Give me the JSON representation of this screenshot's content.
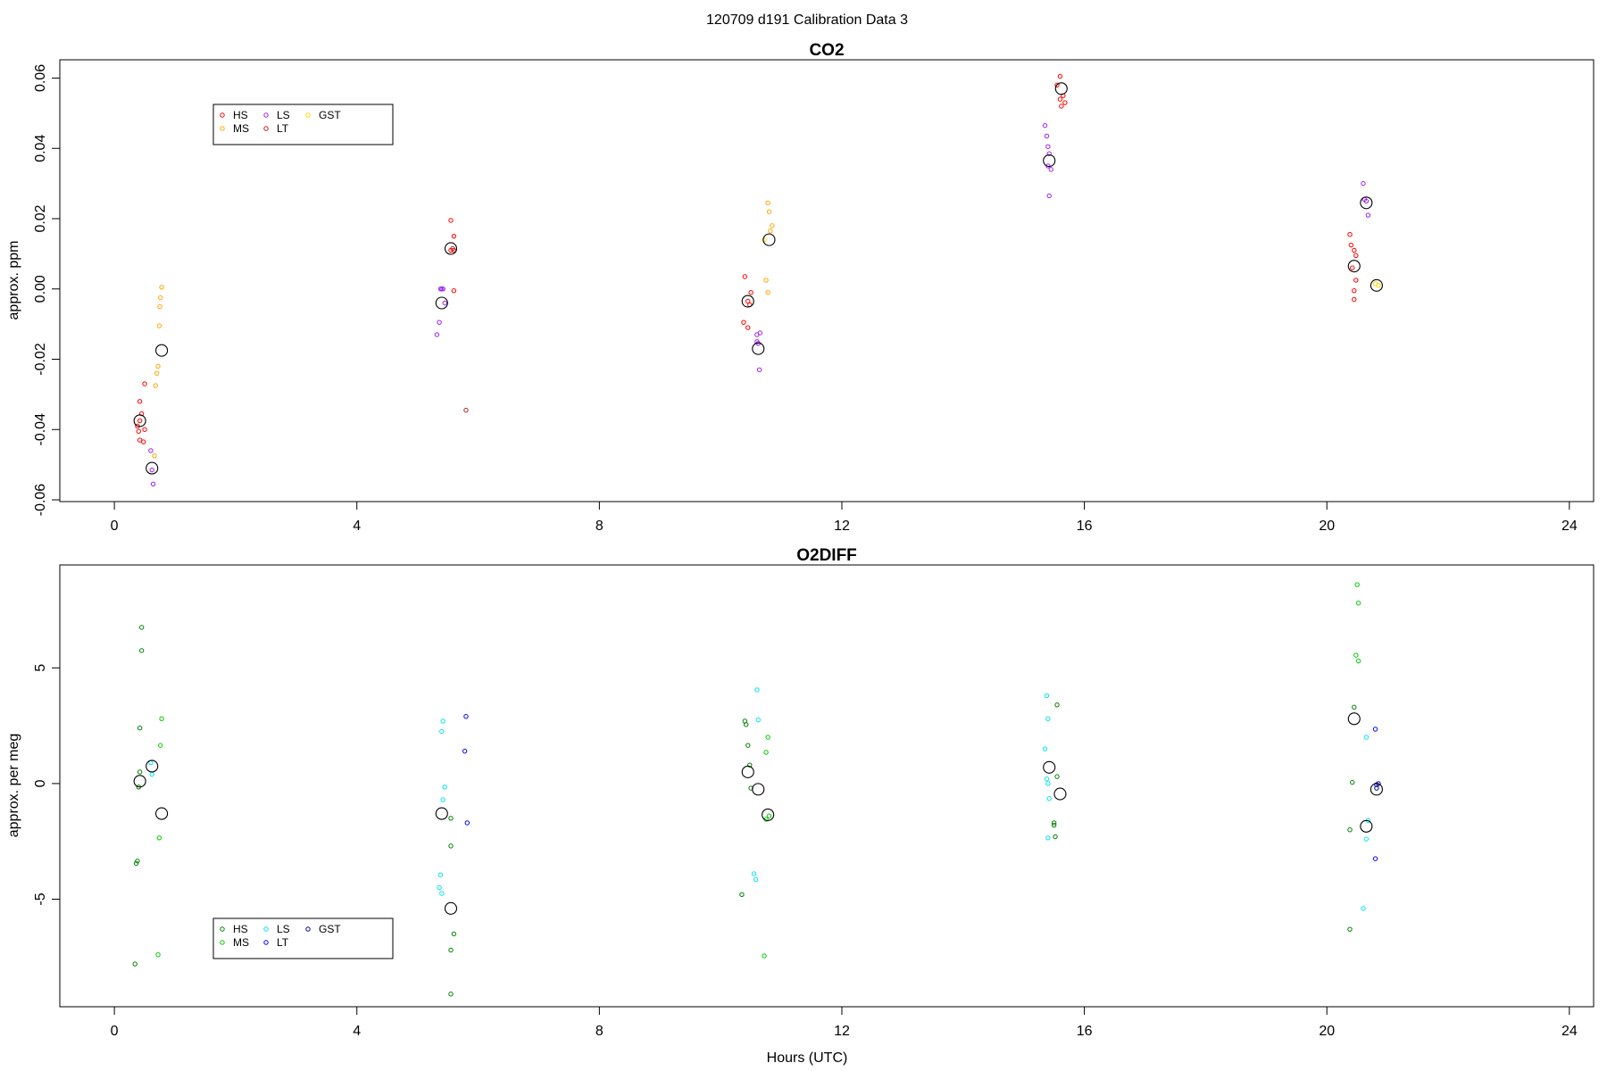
{
  "figure": {
    "title": "120709   d191   Calibration Data 3"
  },
  "chart_data": [
    {
      "type": "scatter",
      "title": "CO2",
      "xlabel": "",
      "ylabel": "approx. ppm",
      "xlim": [
        -0.9,
        24.4
      ],
      "ylim": [
        -0.0605,
        0.0652
      ],
      "x_ticks": [
        0,
        4,
        8,
        12,
        16,
        20,
        24
      ],
      "x_tick_labels": [
        "0",
        "4",
        "8",
        "12",
        "16",
        "20",
        "24"
      ],
      "y_ticks": [
        -0.06,
        -0.04,
        -0.02,
        0.0,
        0.02,
        0.04,
        0.06
      ],
      "y_tick_labels": [
        "-0.06",
        "-0.04",
        "-0.02",
        "0.00",
        "0.02",
        "0.04",
        "0.06"
      ],
      "grid": false,
      "legend": {
        "position": "top-left",
        "entries": [
          {
            "label": "HS",
            "color": "#ff0000"
          },
          {
            "label": "MS",
            "color": "#ffa500"
          },
          {
            "label": "LS",
            "color": "#a020f0"
          },
          {
            "label": "LT",
            "color": "#b22222"
          },
          {
            "label": "GST",
            "color": "#ffd700"
          }
        ]
      },
      "series": [
        {
          "name": "HS",
          "color": "#ff0000",
          "points": [
            [
              0.38,
              -0.039
            ],
            [
              0.4,
              -0.0405
            ],
            [
              0.42,
              -0.043
            ],
            [
              0.45,
              -0.0355
            ],
            [
              0.42,
              -0.032
            ],
            [
              0.48,
              -0.0435
            ],
            [
              0.5,
              -0.027
            ],
            [
              0.5,
              -0.04
            ],
            [
              0.42,
              -0.0375
            ],
            [
              5.55,
              0.0195
            ],
            [
              5.6,
              0.015
            ],
            [
              5.55,
              0.011
            ],
            [
              5.6,
              0.011
            ],
            [
              5.6,
              -0.0005
            ],
            [
              10.4,
              0.0035
            ],
            [
              10.38,
              -0.0095
            ],
            [
              10.45,
              -0.011
            ],
            [
              10.45,
              -0.0035
            ],
            [
              10.5,
              -0.001
            ],
            [
              10.48,
              -0.0045
            ],
            [
              15.6,
              0.0605
            ],
            [
              15.65,
              0.055
            ],
            [
              15.6,
              0.054
            ],
            [
              15.62,
              0.052
            ],
            [
              15.68,
              0.053
            ],
            [
              15.55,
              0.058
            ],
            [
              20.38,
              0.0155
            ],
            [
              20.4,
              0.0125
            ],
            [
              20.45,
              0.011
            ],
            [
              20.48,
              0.0095
            ],
            [
              20.42,
              0.006
            ],
            [
              20.48,
              0.0025
            ],
            [
              20.45,
              -0.0005
            ],
            [
              20.45,
              -0.003
            ]
          ]
        },
        {
          "name": "MS",
          "color": "#ffa500",
          "points": [
            [
              0.78,
              0.0005
            ],
            [
              0.76,
              -0.0025
            ],
            [
              0.75,
              -0.005
            ],
            [
              0.74,
              -0.0105
            ],
            [
              0.72,
              -0.022
            ],
            [
              0.7,
              -0.024
            ],
            [
              0.68,
              -0.0275
            ],
            [
              0.66,
              -0.0475
            ],
            [
              10.78,
              0.0245
            ],
            [
              10.8,
              0.022
            ],
            [
              10.85,
              0.018
            ],
            [
              10.82,
              0.0165
            ],
            [
              10.75,
              0.0025
            ],
            [
              10.78,
              -0.001
            ]
          ]
        },
        {
          "name": "LS",
          "color": "#a020f0",
          "points": [
            [
              0.6,
              -0.046
            ],
            [
              0.62,
              -0.0515
            ],
            [
              0.64,
              -0.0555
            ],
            [
              5.32,
              -0.013
            ],
            [
              5.36,
              -0.0095
            ],
            [
              5.38,
              0.0
            ],
            [
              5.42,
              0.0
            ],
            [
              5.45,
              -0.004
            ],
            [
              5.4,
              0.0
            ],
            [
              10.6,
              -0.013
            ],
            [
              10.65,
              -0.0125
            ],
            [
              10.62,
              -0.0155
            ],
            [
              10.64,
              -0.023
            ],
            [
              10.6,
              -0.015
            ],
            [
              15.35,
              0.0465
            ],
            [
              15.38,
              0.0435
            ],
            [
              15.4,
              0.0405
            ],
            [
              15.42,
              0.0385
            ],
            [
              15.4,
              0.035
            ],
            [
              15.45,
              0.034
            ],
            [
              15.42,
              0.0265
            ],
            [
              20.6,
              0.03
            ],
            [
              20.65,
              0.025
            ],
            [
              20.68,
              0.021
            ],
            [
              20.62,
              0.0255
            ]
          ]
        },
        {
          "name": "LT",
          "color": "#b22222",
          "points": [
            [
              5.8,
              -0.0345
            ],
            [
              5.58,
              0.0115
            ]
          ]
        },
        {
          "name": "GST",
          "color": "#ffd700",
          "points": [
            [
              10.72,
              0.014
            ],
            [
              20.8,
              0.0015
            ],
            [
              20.85,
              0.001
            ]
          ]
        }
      ],
      "means": [
        [
          0.42,
          -0.0375
        ],
        [
          0.62,
          -0.051
        ],
        [
          0.78,
          -0.0175
        ],
        [
          5.4,
          -0.004
        ],
        [
          5.55,
          0.0115
        ],
        [
          10.45,
          -0.0035
        ],
        [
          10.62,
          -0.017
        ],
        [
          10.8,
          0.014
        ],
        [
          15.42,
          0.0365
        ],
        [
          15.62,
          0.057
        ],
        [
          20.45,
          0.0065
        ],
        [
          20.65,
          0.0245
        ],
        [
          20.82,
          0.001
        ]
      ]
    },
    {
      "type": "scatter",
      "title": "O2DIFF",
      "xlabel": "Hours (UTC)",
      "ylabel": "approx. per meg",
      "xlim": [
        -0.9,
        24.4
      ],
      "ylim": [
        -9.65,
        9.45
      ],
      "x_ticks": [
        0,
        4,
        8,
        12,
        16,
        20,
        24
      ],
      "x_tick_labels": [
        "0",
        "4",
        "8",
        "12",
        "16",
        "20",
        "24"
      ],
      "y_ticks": [
        -5,
        0,
        5
      ],
      "y_tick_labels": [
        "-5",
        "0",
        "5"
      ],
      "grid": false,
      "legend": {
        "position": "bottom-left",
        "entries": [
          {
            "label": "HS",
            "color": "#008000"
          },
          {
            "label": "MS",
            "color": "#00cc00"
          },
          {
            "label": "LS",
            "color": "#00e5ee"
          },
          {
            "label": "LT",
            "color": "#0000ff"
          },
          {
            "label": "GST",
            "color": "#00008b"
          }
        ]
      },
      "series": [
        {
          "name": "HS",
          "color": "#008000",
          "points": [
            [
              0.45,
              6.75
            ],
            [
              0.45,
              5.75
            ],
            [
              0.42,
              2.4
            ],
            [
              0.42,
              0.5
            ],
            [
              0.4,
              -0.15
            ],
            [
              0.38,
              -3.35
            ],
            [
              0.36,
              -3.45
            ],
            [
              0.34,
              -7.8
            ],
            [
              5.55,
              -1.5
            ],
            [
              5.55,
              -2.7
            ],
            [
              5.6,
              -6.5
            ],
            [
              5.55,
              -7.2
            ],
            [
              5.55,
              -9.1
            ],
            [
              10.4,
              2.7
            ],
            [
              10.42,
              2.55
            ],
            [
              10.45,
              1.65
            ],
            [
              10.48,
              0.8
            ],
            [
              10.5,
              -0.2
            ],
            [
              10.35,
              -4.8
            ],
            [
              15.55,
              3.4
            ],
            [
              15.55,
              0.3
            ],
            [
              15.5,
              -1.7
            ],
            [
              15.5,
              -1.8
            ],
            [
              15.52,
              -2.3
            ],
            [
              20.45,
              3.3
            ],
            [
              20.42,
              0.05
            ],
            [
              20.38,
              -2.0
            ],
            [
              20.38,
              -6.3
            ]
          ]
        },
        {
          "name": "MS",
          "color": "#00cc00",
          "points": [
            [
              0.78,
              2.8
            ],
            [
              0.76,
              1.65
            ],
            [
              0.74,
              -2.35
            ],
            [
              0.72,
              -7.4
            ],
            [
              10.78,
              2.0
            ],
            [
              10.75,
              1.35
            ],
            [
              10.8,
              -1.4
            ],
            [
              10.75,
              -1.55
            ],
            [
              10.72,
              -7.45
            ],
            [
              20.5,
              8.6
            ],
            [
              20.52,
              7.8
            ],
            [
              20.48,
              5.55
            ],
            [
              20.52,
              5.3
            ]
          ]
        },
        {
          "name": "LS",
          "color": "#00e5ee",
          "points": [
            [
              0.6,
              0.9
            ],
            [
              0.62,
              0.4
            ],
            [
              5.42,
              2.7
            ],
            [
              5.4,
              2.25
            ],
            [
              5.45,
              -0.15
            ],
            [
              5.42,
              -0.7
            ],
            [
              5.38,
              -3.95
            ],
            [
              5.36,
              -4.5
            ],
            [
              5.4,
              -4.75
            ],
            [
              10.6,
              4.05
            ],
            [
              10.62,
              2.75
            ],
            [
              10.55,
              -3.9
            ],
            [
              10.58,
              -4.15
            ],
            [
              15.38,
              3.8
            ],
            [
              15.4,
              2.8
            ],
            [
              15.35,
              1.5
            ],
            [
              15.38,
              0.2
            ],
            [
              15.4,
              0.0
            ],
            [
              15.42,
              -0.65
            ],
            [
              15.4,
              -2.35
            ],
            [
              20.6,
              -5.4
            ],
            [
              20.65,
              2.0
            ],
            [
              20.68,
              -1.6
            ],
            [
              20.65,
              -2.4
            ]
          ]
        },
        {
          "name": "LT",
          "color": "#0000ff",
          "points": [
            [
              5.8,
              2.9
            ],
            [
              5.78,
              1.4
            ],
            [
              5.82,
              -1.7
            ],
            [
              20.8,
              2.35
            ],
            [
              20.82,
              -0.05
            ],
            [
              20.8,
              -3.25
            ]
          ]
        },
        {
          "name": "GST",
          "color": "#00008b",
          "points": [
            [
              20.85,
              0.0
            ],
            [
              20.82,
              -0.2
            ]
          ]
        }
      ],
      "means": [
        [
          0.42,
          0.1
        ],
        [
          0.62,
          0.75
        ],
        [
          0.78,
          -1.3
        ],
        [
          5.4,
          -1.3
        ],
        [
          5.55,
          -5.4
        ],
        [
          10.45,
          0.5
        ],
        [
          10.62,
          -0.25
        ],
        [
          10.78,
          -1.35
        ],
        [
          15.42,
          0.7
        ],
        [
          15.6,
          -0.45
        ],
        [
          20.45,
          2.8
        ],
        [
          20.65,
          -1.85
        ],
        [
          20.82,
          -0.25
        ]
      ]
    }
  ]
}
